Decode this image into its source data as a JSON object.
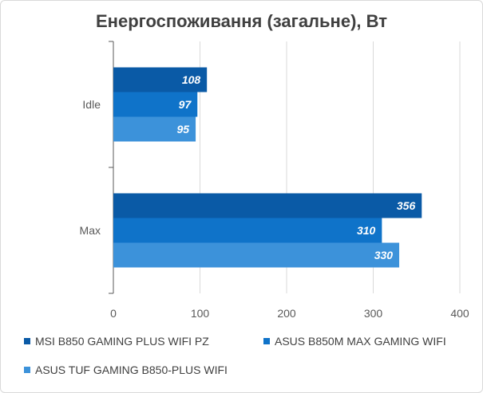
{
  "chart_data": {
    "type": "bar",
    "orientation": "horizontal",
    "title": "Енергоспоживання (загальне), Вт",
    "categories": [
      "Idle",
      "Max"
    ],
    "series": [
      {
        "name": "MSI B850 GAMING PLUS WIFI PZ",
        "color": "#0a5aa6",
        "values": [
          108,
          356
        ]
      },
      {
        "name": "ASUS B850M MAX GAMING WIFI",
        "color": "#0f73c9",
        "values": [
          97,
          310
        ]
      },
      {
        "name": "ASUS TUF GAMING B850-PLUS WIFI",
        "color": "#3c92da",
        "values": [
          95,
          330
        ]
      }
    ],
    "xlim": [
      0,
      400
    ],
    "xticks": [
      "0",
      "100",
      "200",
      "300",
      "400"
    ],
    "grid": true,
    "legend_position": "bottom"
  }
}
